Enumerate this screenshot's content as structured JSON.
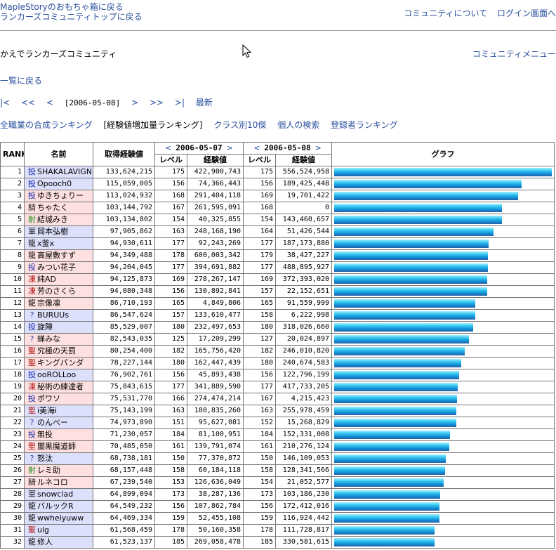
{
  "header": {
    "back_links": [
      "MapleStoryのおもちゃ箱に戻る",
      "ランカーズコミュニティトップに戻る"
    ],
    "right_links": [
      "コミュニティについて",
      "ログイン画面へ"
    ]
  },
  "community_title": "かえでランカーズコミュニティ",
  "community_menu": "コミュニティメニュー",
  "back_to_list": "一覧に戻る",
  "date_nav": {
    "first": "|<",
    "prev_far": "<<",
    "prev": "<",
    "current": "[2006-05-08]",
    "next": ">",
    "next_far": ">>",
    "last": ">|",
    "latest": "最新"
  },
  "ranking_links": [
    {
      "label": "全職業の合成ランキング",
      "current": false
    },
    {
      "label": "[経験値増加量ランキング]",
      "current": true
    },
    {
      "label": "クラス別10傑",
      "current": false
    },
    {
      "label": "個人の検索",
      "current": false
    },
    {
      "label": "登録者ランキング",
      "current": false
    }
  ],
  "table": {
    "headers": {
      "rank": "RANK",
      "name": "名前",
      "gain": "取得経験値",
      "date1": "2006-05-07",
      "date2": "2006-05-08",
      "level": "レベル",
      "exp": "経験値",
      "graph": "グラフ",
      "prev_arrow": "<",
      "next_arrow": ">"
    },
    "max_gain": 133624215,
    "rows": [
      {
        "rank": "1",
        "job": "投",
        "name": "SHAKALAVIGNE",
        "gain": "133,624,215",
        "lv1": "175",
        "exp1": "422,900,743",
        "lv2": "175",
        "exp2": "556,524,958",
        "value": 133624215,
        "bg": "blue",
        "color": "#1a2aa8"
      },
      {
        "rank": "2",
        "job": "投",
        "name": "Opooch0",
        "gain": "115,059,005",
        "lv1": "156",
        "exp1": "74,366,443",
        "lv2": "156",
        "exp2": "189,425,448",
        "value": 115059005,
        "bg": "blue",
        "color": "#1a2aa8"
      },
      {
        "rank": "3",
        "job": "投",
        "name": "ゆきちょりー",
        "gain": "113,024,932",
        "lv1": "168",
        "exp1": "291,404,118",
        "lv2": "169",
        "exp2": "19,701,422",
        "value": 113024932,
        "bg": "pink",
        "color": "#1a2aa8"
      },
      {
        "rank": "4",
        "job": "騎",
        "name": "ちゃたく",
        "gain": "103,144,792",
        "lv1": "167",
        "exp1": "261,595,091",
        "lv2": "168",
        "exp2": "0",
        "value": 103144792,
        "bg": "pink",
        "color": "#222222"
      },
      {
        "rank": "5",
        "job": "射",
        "name": "結城みき",
        "gain": "103,134,802",
        "lv1": "154",
        "exp1": "40,325,855",
        "lv2": "154",
        "exp2": "143,460,657",
        "value": 103134802,
        "bg": "pink",
        "color": "#1b8a1b"
      },
      {
        "rank": "6",
        "job": "軍",
        "name": "岡本弘樹",
        "gain": "97,905,862",
        "lv1": "163",
        "exp1": "248,168,190",
        "lv2": "164",
        "exp2": "51,426,544",
        "value": 97905862,
        "bg": "blue",
        "color": "#222222"
      },
      {
        "rank": "7",
        "job": "龍",
        "name": "x釜x",
        "gain": "94,930,611",
        "lv1": "177",
        "exp1": "92,243,269",
        "lv2": "177",
        "exp2": "187,173,880",
        "value": 94930611,
        "bg": "blue",
        "color": "#222222"
      },
      {
        "rank": "8",
        "job": "龍",
        "name": "高屋敷すず",
        "gain": "94,349,488",
        "lv1": "178",
        "exp1": "600,003,342",
        "lv2": "179",
        "exp2": "38,427,227",
        "value": 94349488,
        "bg": "pink",
        "color": "#222222"
      },
      {
        "rank": "9",
        "job": "投",
        "name": "みつい花子",
        "gain": "94,204,045",
        "lv1": "177",
        "exp1": "394,691,882",
        "lv2": "177",
        "exp2": "488,895,927",
        "value": 94204045,
        "bg": "pink",
        "color": "#1a2aa8"
      },
      {
        "rank": "10",
        "job": "凍",
        "name": "純AD",
        "gain": "94,125,873",
        "lv1": "169",
        "exp1": "278,267,147",
        "lv2": "169",
        "exp2": "372,393,020",
        "value": 94125873,
        "bg": "pink",
        "color": "#b01818"
      },
      {
        "rank": "11",
        "job": "凍",
        "name": "芳のさくら",
        "gain": "94,080,348",
        "lv1": "156",
        "exp1": "130,892,841",
        "lv2": "157",
        "exp2": "22,152,651",
        "value": 94080348,
        "bg": "pink",
        "color": "#b01818"
      },
      {
        "rank": "12",
        "job": "龍",
        "name": "宗像凛",
        "gain": "86,710,193",
        "lv1": "165",
        "exp1": "4,849,806",
        "lv2": "165",
        "exp2": "91,559,999",
        "value": 86710193,
        "bg": "pink",
        "color": "#222222"
      },
      {
        "rank": "13",
        "job": "?",
        "name": "BURUUs",
        "gain": "86,547,624",
        "lv1": "157",
        "exp1": "133,610,477",
        "lv2": "158",
        "exp2": "6,222,998",
        "value": 86547624,
        "bg": "blue",
        "color": "#3a4ab0"
      },
      {
        "rank": "14",
        "job": "投",
        "name": "旋陣",
        "gain": "85,529,007",
        "lv1": "180",
        "exp1": "232,497,653",
        "lv2": "180",
        "exp2": "318,026,660",
        "value": 85529007,
        "bg": "blue",
        "color": "#1a2aa8"
      },
      {
        "rank": "15",
        "job": "?",
        "name": "蝉みな",
        "gain": "82,543,035",
        "lv1": "125",
        "exp1": "17,209,299",
        "lv2": "127",
        "exp2": "20,024,897",
        "value": 82543035,
        "bg": "pink",
        "color": "#3a4ab0"
      },
      {
        "rank": "16",
        "job": "聖",
        "name": "究極の天罰",
        "gain": "80,254,400",
        "lv1": "182",
        "exp1": "165,756,420",
        "lv2": "182",
        "exp2": "246,010,820",
        "value": 80254400,
        "bg": "pink",
        "color": "#b01818"
      },
      {
        "rank": "17",
        "job": "聖",
        "name": "キングパンダ",
        "gain": "78,227,144",
        "lv1": "180",
        "exp1": "162,447,439",
        "lv2": "180",
        "exp2": "240,674,583",
        "value": 78227144,
        "bg": "pink",
        "color": "#b01818"
      },
      {
        "rank": "18",
        "job": "投",
        "name": "ooROLLoo",
        "gain": "76,902,761",
        "lv1": "156",
        "exp1": "45,893,438",
        "lv2": "156",
        "exp2": "122,796,199",
        "value": 76902761,
        "bg": "blue",
        "color": "#1a2aa8"
      },
      {
        "rank": "19",
        "job": "凍",
        "name": "秘術の練達者",
        "gain": "75,843,615",
        "lv1": "177",
        "exp1": "341,889,590",
        "lv2": "177",
        "exp2": "417,733,205",
        "value": 75843615,
        "bg": "pink",
        "color": "#b01818"
      },
      {
        "rank": "20",
        "job": "投",
        "name": "ポワソ",
        "gain": "75,531,770",
        "lv1": "166",
        "exp1": "274,474,214",
        "lv2": "167",
        "exp2": "4,215,423",
        "value": 75531770,
        "bg": "pink",
        "color": "#1a2aa8"
      },
      {
        "rank": "21",
        "job": "聖",
        "name": "i美海i",
        "gain": "75,143,199",
        "lv1": "163",
        "exp1": "180,835,260",
        "lv2": "163",
        "exp2": "255,978,459",
        "value": 75143199,
        "bg": "blue",
        "color": "#b01818"
      },
      {
        "rank": "22",
        "job": "?",
        "name": "のんべー",
        "gain": "74,973,890",
        "lv1": "151",
        "exp1": "95,627,081",
        "lv2": "152",
        "exp2": "15,268,829",
        "value": 74973890,
        "bg": "blue",
        "color": "#3a4ab0"
      },
      {
        "rank": "23",
        "job": "投",
        "name": "無投",
        "gain": "71,230,057",
        "lv1": "184",
        "exp1": "81,100,951",
        "lv2": "184",
        "exp2": "152,331,008",
        "value": 71230057,
        "bg": "pink",
        "color": "#1a2aa8"
      },
      {
        "rank": "24",
        "job": "聖",
        "name": "闇黒魔道師",
        "gain": "70,485,050",
        "lv1": "161",
        "exp1": "139,791,074",
        "lv2": "161",
        "exp2": "210,276,124",
        "value": 70485050,
        "bg": "pink",
        "color": "#b01818"
      },
      {
        "rank": "25",
        "job": "?",
        "name": "怒汰",
        "gain": "68,738,181",
        "lv1": "150",
        "exp1": "77,370,872",
        "lv2": "150",
        "exp2": "146,109,053",
        "value": 68738181,
        "bg": "blue",
        "color": "#3a4ab0"
      },
      {
        "rank": "26",
        "job": "射",
        "name": "レミ助",
        "gain": "68,157,448",
        "lv1": "158",
        "exp1": "60,184,118",
        "lv2": "158",
        "exp2": "128,341,566",
        "value": 68157448,
        "bg": "pink",
        "color": "#1b8a1b"
      },
      {
        "rank": "27",
        "job": "騎",
        "name": "ルネコロ",
        "gain": "67,239,540",
        "lv1": "153",
        "exp1": "126,636,049",
        "lv2": "154",
        "exp2": "21,052,577",
        "value": 67239540,
        "bg": "pink",
        "color": "#222222"
      },
      {
        "rank": "28",
        "job": "軍",
        "name": "snowclad",
        "gain": "64,899,094",
        "lv1": "173",
        "exp1": "38,287,136",
        "lv2": "173",
        "exp2": "103,186,230",
        "value": 64899094,
        "bg": "blue",
        "color": "#222222"
      },
      {
        "rank": "29",
        "job": "龍",
        "name": "バルックR",
        "gain": "64,549,232",
        "lv1": "156",
        "exp1": "107,862,784",
        "lv2": "156",
        "exp2": "172,412,016",
        "value": 64549232,
        "bg": "blue",
        "color": "#222222"
      },
      {
        "rank": "30",
        "job": "龍",
        "name": "wwheiyuww",
        "gain": "64,469,334",
        "lv1": "159",
        "exp1": "52,455,108",
        "lv2": "159",
        "exp2": "116,924,442",
        "value": 64469334,
        "bg": "blue",
        "color": "#222222"
      },
      {
        "rank": "31",
        "job": "聖",
        "name": "ulg",
        "gain": "61,568,459",
        "lv1": "178",
        "exp1": "50,160,358",
        "lv2": "178",
        "exp2": "111,728,817",
        "value": 61568459,
        "bg": "blue",
        "color": "#b01818"
      },
      {
        "rank": "32",
        "job": "龍",
        "name": "修人",
        "gain": "61,523,137",
        "lv1": "185",
        "exp1": "269,058,478",
        "lv2": "185",
        "exp2": "330,581,615",
        "value": 61523137,
        "bg": "blue",
        "color": "#222222"
      }
    ]
  }
}
